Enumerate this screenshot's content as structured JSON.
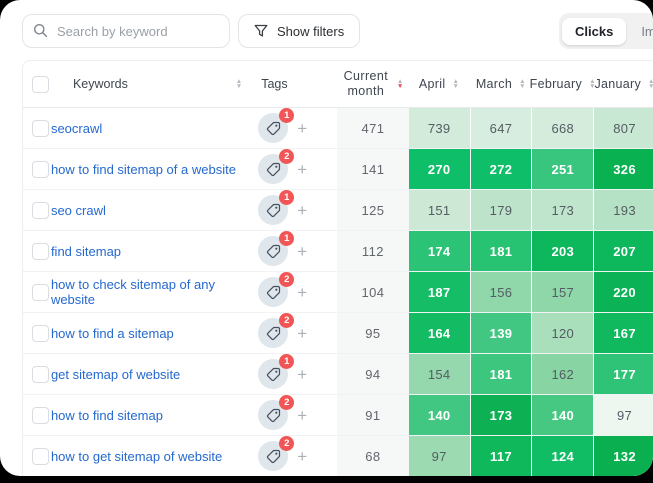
{
  "topbar": {
    "search_placeholder": "Search by keyword",
    "show_filters_label": "Show filters",
    "toggle": {
      "clicks": "Clicks",
      "impressions": "Impressions",
      "active": "Clicks"
    }
  },
  "colors": {
    "link_blue": "#2569cf",
    "badge_red": "#f25555",
    "accent_green": "#0fbe68",
    "current_col_bg": "#f6f7f7"
  },
  "table": {
    "header": {
      "keywords": "Keywords",
      "tags": "Tags",
      "current_month": "Current month",
      "months": [
        "April",
        "March",
        "February",
        "January"
      ],
      "sorted_by": "Current month",
      "sort_direction": "desc"
    },
    "rows": [
      {
        "keyword": "seocrawl",
        "tag_count": "1",
        "current": "471",
        "cells": [
          {
            "value": "739",
            "bg": "#d2ebdb",
            "fg": "#555c63"
          },
          {
            "value": "647",
            "bg": "#d7eddf",
            "fg": "#555c63"
          },
          {
            "value": "668",
            "bg": "#d5ecdd",
            "fg": "#555c63"
          },
          {
            "value": "807",
            "bg": "#c9e8d3",
            "fg": "#555c63"
          }
        ]
      },
      {
        "keyword": "how to find sitemap of a website",
        "tag_count": "2",
        "current": "141",
        "cells": [
          {
            "value": "270",
            "bg": "#0fbe68",
            "fg": "#ffffff"
          },
          {
            "value": "272",
            "bg": "#0fbe68",
            "fg": "#ffffff"
          },
          {
            "value": "251",
            "bg": "#38c57d",
            "fg": "#ffffff"
          },
          {
            "value": "326",
            "bg": "#0ab150",
            "fg": "#ffffff"
          }
        ]
      },
      {
        "keyword": "seo crawl",
        "tag_count": "1",
        "current": "125",
        "cells": [
          {
            "value": "151",
            "bg": "#cde9d6",
            "fg": "#555c63"
          },
          {
            "value": "179",
            "bg": "#bde4cb",
            "fg": "#555c63"
          },
          {
            "value": "173",
            "bg": "#c0e5cd",
            "fg": "#555c63"
          },
          {
            "value": "193",
            "bg": "#b5e1c4",
            "fg": "#555c63"
          }
        ]
      },
      {
        "keyword": "find sitemap",
        "tag_count": "1",
        "current": "112",
        "cells": [
          {
            "value": "174",
            "bg": "#2bc375",
            "fg": "#ffffff"
          },
          {
            "value": "181",
            "bg": "#28c273",
            "fg": "#ffffff"
          },
          {
            "value": "203",
            "bg": "#0db85d",
            "fg": "#ffffff"
          },
          {
            "value": "207",
            "bg": "#0db85d",
            "fg": "#ffffff"
          }
        ]
      },
      {
        "keyword": "how to check sitemap of any website",
        "tag_count": "2",
        "current": "104",
        "cells": [
          {
            "value": "187",
            "bg": "#14bd66",
            "fg": "#ffffff"
          },
          {
            "value": "156",
            "bg": "#90d7aa",
            "fg": "#555c63"
          },
          {
            "value": "157",
            "bg": "#8fd7a9",
            "fg": "#555c63"
          },
          {
            "value": "220",
            "bg": "#0cb356",
            "fg": "#ffffff"
          }
        ]
      },
      {
        "keyword": "how to find a sitemap",
        "tag_count": "2",
        "current": "95",
        "cells": [
          {
            "value": "164",
            "bg": "#13bb62",
            "fg": "#ffffff"
          },
          {
            "value": "139",
            "bg": "#41c781",
            "fg": "#ffffff"
          },
          {
            "value": "120",
            "bg": "#a9dfba",
            "fg": "#555c63"
          },
          {
            "value": "167",
            "bg": "#11b95e",
            "fg": "#ffffff"
          }
        ]
      },
      {
        "keyword": "get sitemap of website",
        "tag_count": "1",
        "current": "94",
        "cells": [
          {
            "value": "154",
            "bg": "#95d8ad",
            "fg": "#555c63"
          },
          {
            "value": "181",
            "bg": "#3dc67e",
            "fg": "#ffffff"
          },
          {
            "value": "162",
            "bg": "#88d4a3",
            "fg": "#555c63"
          },
          {
            "value": "177",
            "bg": "#2fc377",
            "fg": "#ffffff"
          }
        ]
      },
      {
        "keyword": "how to find sitemap",
        "tag_count": "2",
        "current": "91",
        "cells": [
          {
            "value": "140",
            "bg": "#41c781",
            "fg": "#ffffff"
          },
          {
            "value": "173",
            "bg": "#0db153",
            "fg": "#ffffff"
          },
          {
            "value": "140",
            "bg": "#46c883",
            "fg": "#ffffff"
          },
          {
            "value": "97",
            "bg": "#eef6f0",
            "fg": "#555c63"
          }
        ]
      },
      {
        "keyword": "how to get sitemap of website",
        "tag_count": "2",
        "current": "68",
        "cells": [
          {
            "value": "97",
            "bg": "#9cdab1",
            "fg": "#555c63"
          },
          {
            "value": "117",
            "bg": "#10b85c",
            "fg": "#ffffff"
          },
          {
            "value": "124",
            "bg": "#10bd64",
            "fg": "#ffffff"
          },
          {
            "value": "132",
            "bg": "#0ab04f",
            "fg": "#ffffff"
          }
        ]
      }
    ],
    "partial_row": {
      "badge_visible": true,
      "cells": [
        {
          "bg": "#a3dcb5"
        },
        {
          "bg": "#0db55c"
        },
        {
          "bg": "#0db55c"
        },
        {
          "bg": "#0db55c"
        },
        {
          "bg": "#0aa94c"
        }
      ]
    }
  }
}
